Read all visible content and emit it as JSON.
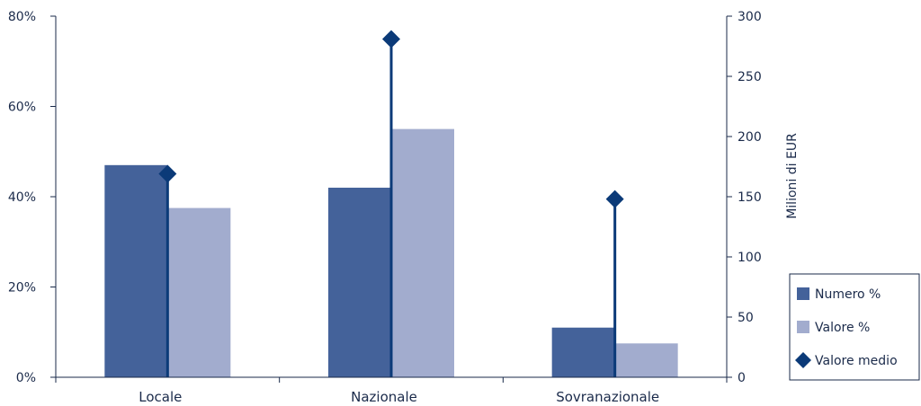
{
  "chart_data": {
    "type": "bar",
    "categories": [
      "Locale",
      "Nazionale",
      "Sovranazionale"
    ],
    "series": [
      {
        "name": "Numero %",
        "axis": "left",
        "values": [
          47,
          42,
          11
        ],
        "color": "#44629a"
      },
      {
        "name": "Valore %",
        "axis": "left",
        "values": [
          37.5,
          55,
          7.5
        ],
        "color": "#a2acce"
      },
      {
        "name": "Valore medio",
        "axis": "right",
        "marker": "diamond",
        "values": [
          169,
          281,
          148
        ],
        "color": "#0b3a78"
      }
    ],
    "y_left": {
      "ylim": [
        0,
        80
      ],
      "ticks": [
        0,
        20,
        40,
        60,
        80
      ],
      "tick_labels": [
        "0%",
        "20%",
        "40%",
        "60%",
        "80%"
      ],
      "label": ""
    },
    "y_right": {
      "ylim": [
        0,
        300
      ],
      "ticks": [
        0,
        50,
        100,
        150,
        200,
        250,
        300
      ],
      "tick_labels": [
        "0",
        "50",
        "100",
        "150",
        "200",
        "250",
        "300"
      ],
      "label": "Milioni di EUR"
    },
    "xlabel": "",
    "title": "",
    "grid": false,
    "legend_position": "bottom-right",
    "axis_color": "#1a2a4a"
  }
}
